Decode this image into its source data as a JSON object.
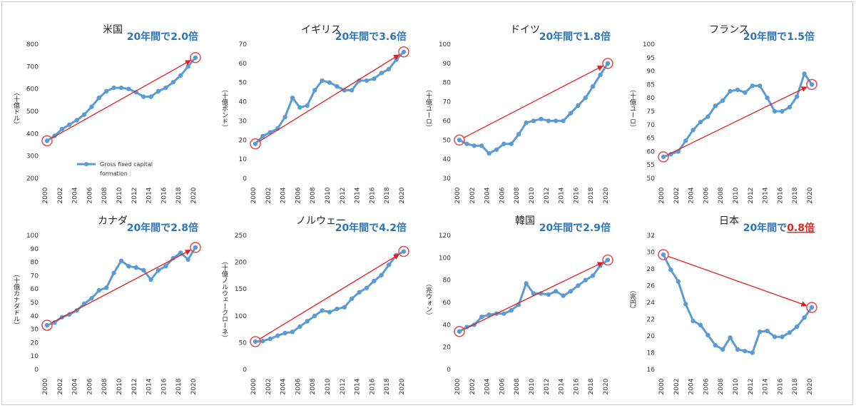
{
  "chart_data": [
    {
      "type": "line",
      "title": "米国",
      "badge_prefix": "20年間で",
      "badge_value": "2.0倍",
      "badge_highlight": false,
      "ylabel": "（十億ドル）",
      "ylim": [
        200,
        800
      ],
      "yticks": [
        200,
        300,
        400,
        500,
        600,
        700,
        800
      ],
      "x": [
        2000,
        2001,
        2002,
        2003,
        2004,
        2005,
        2006,
        2007,
        2008,
        2009,
        2010,
        2011,
        2012,
        2013,
        2014,
        2015,
        2016,
        2017,
        2018,
        2019,
        2020
      ],
      "xtick_labels": [
        "2000",
        "2002",
        "2004",
        "2006",
        "2008",
        "2010",
        "2012",
        "2014",
        "2016",
        "2018",
        "2020"
      ],
      "series": [
        {
          "name": "Gross fixed capital formation",
          "values": [
            368,
            390,
            420,
            440,
            460,
            485,
            520,
            560,
            590,
            605,
            605,
            600,
            585,
            565,
            565,
            590,
            605,
            630,
            660,
            700,
            740
          ]
        }
      ],
      "legend": {
        "line1": "Gross fixed capital",
        "line2": "formation",
        "position": "bottom-left"
      },
      "arrow": {
        "from": [
          2000,
          368
        ],
        "to": [
          2020,
          740
        ]
      }
    },
    {
      "type": "line",
      "title": "イギリス",
      "badge_prefix": "20年間で",
      "badge_value": "3.6倍",
      "badge_highlight": false,
      "ylabel": "（十億ポンド）",
      "ylim": [
        0,
        70
      ],
      "yticks": [
        0,
        10,
        20,
        30,
        40,
        50,
        60,
        70
      ],
      "x": [
        2000,
        2001,
        2002,
        2003,
        2004,
        2005,
        2006,
        2007,
        2008,
        2009,
        2010,
        2011,
        2012,
        2013,
        2014,
        2015,
        2016,
        2017,
        2018,
        2019,
        2020
      ],
      "xtick_labels": [
        "2000",
        "2002",
        "2004",
        "2006",
        "2008",
        "2010",
        "2012",
        "2014",
        "2016",
        "2018",
        "2020"
      ],
      "series": [
        {
          "values": [
            18,
            22,
            24,
            26,
            32,
            42,
            37,
            38,
            46,
            51,
            50,
            48,
            46,
            46,
            51,
            51,
            52,
            55,
            57,
            62,
            66
          ]
        }
      ],
      "arrow": {
        "from": [
          2000,
          18
        ],
        "to": [
          2020,
          66
        ]
      }
    },
    {
      "type": "line",
      "title": "ドイツ",
      "badge_prefix": "20年間で",
      "badge_value": "1.8倍",
      "badge_highlight": false,
      "ylabel": "（十億ユーロ）",
      "ylim": [
        30,
        100
      ],
      "yticks": [
        30,
        40,
        50,
        60,
        70,
        80,
        90,
        100
      ],
      "x": [
        2000,
        2001,
        2002,
        2003,
        2004,
        2005,
        2006,
        2007,
        2008,
        2009,
        2010,
        2011,
        2012,
        2013,
        2014,
        2015,
        2016,
        2017,
        2018,
        2019,
        2020
      ],
      "xtick_labels": [
        "2000",
        "2002",
        "2004",
        "2006",
        "2008",
        "2010",
        "2012",
        "2014",
        "2016",
        "2018",
        "2020"
      ],
      "series": [
        {
          "values": [
            50,
            48,
            47,
            47,
            43,
            45,
            48,
            48,
            53,
            59,
            60,
            61,
            60,
            60,
            60,
            64,
            68,
            72,
            78,
            84,
            90
          ]
        }
      ],
      "arrow": {
        "from": [
          2000,
          50
        ],
        "to": [
          2020,
          90
        ]
      }
    },
    {
      "type": "line",
      "title": "フランス",
      "badge_prefix": "20年間で",
      "badge_value": "1.5倍",
      "badge_highlight": false,
      "ylabel": "（十億ユーロ）",
      "ylim": [
        50,
        100
      ],
      "yticks": [
        50,
        55,
        60,
        65,
        70,
        75,
        80,
        85,
        90,
        95,
        100
      ],
      "x": [
        2000,
        2001,
        2002,
        2003,
        2004,
        2005,
        2006,
        2007,
        2008,
        2009,
        2010,
        2011,
        2012,
        2013,
        2014,
        2015,
        2016,
        2017,
        2018,
        2019,
        2020
      ],
      "xtick_labels": [
        "2000",
        "2002",
        "2004",
        "2006",
        "2008",
        "2010",
        "2012",
        "2014",
        "2016",
        "2018",
        "2020"
      ],
      "series": [
        {
          "values": [
            58,
            59,
            60,
            64,
            68,
            71,
            73,
            77,
            79,
            82.5,
            83,
            82,
            84.5,
            84.5,
            80,
            75,
            75,
            76.5,
            80.5,
            89,
            85
          ]
        }
      ],
      "arrow": {
        "from": [
          2000,
          58
        ],
        "to": [
          2020,
          85
        ]
      }
    },
    {
      "type": "line",
      "title": "カナダ",
      "badge_prefix": "20年間で",
      "badge_value": "2.8倍",
      "badge_highlight": false,
      "ylabel": "（十億カナダドル）",
      "ylim": [
        0,
        100
      ],
      "yticks": [
        0,
        10,
        20,
        30,
        40,
        50,
        60,
        70,
        80,
        90,
        100
      ],
      "x": [
        2000,
        2001,
        2002,
        2003,
        2004,
        2005,
        2006,
        2007,
        2008,
        2009,
        2010,
        2011,
        2012,
        2013,
        2014,
        2015,
        2016,
        2017,
        2018,
        2019,
        2020
      ],
      "xtick_labels": [
        "2000",
        "2002",
        "2004",
        "2006",
        "2008",
        "2010",
        "2012",
        "2014",
        "2016",
        "2018",
        "2020"
      ],
      "series": [
        {
          "values": [
            33,
            35,
            39,
            41,
            44,
            49,
            53,
            59,
            61,
            72,
            81,
            77,
            76,
            74,
            67,
            74,
            77,
            83,
            87,
            82,
            91
          ]
        }
      ],
      "arrow": {
        "from": [
          2000,
          33
        ],
        "to": [
          2020,
          91
        ]
      }
    },
    {
      "type": "line",
      "title": "ノルウェー",
      "badge_prefix": "20年間で",
      "badge_value": "4.2倍",
      "badge_highlight": false,
      "ylabel": "（十億ノルウェークローネ）",
      "ylim": [
        0,
        250
      ],
      "yticks": [
        0,
        50,
        100,
        150,
        200,
        250
      ],
      "x": [
        2000,
        2001,
        2002,
        2003,
        2004,
        2005,
        2006,
        2007,
        2008,
        2009,
        2010,
        2011,
        2012,
        2013,
        2014,
        2015,
        2016,
        2017,
        2018,
        2019,
        2020
      ],
      "xtick_labels": [
        "2000",
        "2002",
        "2004",
        "2006",
        "2008",
        "2010",
        "2012",
        "2014",
        "2016",
        "2018",
        "2020"
      ],
      "series": [
        {
          "values": [
            52,
            53,
            57,
            63,
            68,
            70,
            80,
            90,
            100,
            110,
            107,
            113,
            116,
            132,
            144,
            152,
            165,
            176,
            195,
            213,
            220
          ]
        }
      ],
      "arrow": {
        "from": [
          2000,
          52
        ],
        "to": [
          2020,
          220
        ]
      }
    },
    {
      "type": "line",
      "title": "韓国",
      "badge_prefix": "20年間で",
      "badge_value": "2.9倍",
      "badge_highlight": false,
      "ylabel": "（兆ウォン）",
      "ylim": [
        0,
        120
      ],
      "yticks": [
        0,
        20,
        40,
        60,
        80,
        100,
        120
      ],
      "x": [
        2000,
        2001,
        2002,
        2003,
        2004,
        2005,
        2006,
        2007,
        2008,
        2009,
        2010,
        2011,
        2012,
        2013,
        2014,
        2015,
        2016,
        2017,
        2018,
        2019,
        2020
      ],
      "xtick_labels": [
        "2000",
        "2002",
        "2004",
        "2006",
        "2008",
        "2010",
        "2012",
        "2014",
        "2016",
        "2018",
        "2020"
      ],
      "series": [
        {
          "values": [
            34,
            38,
            40,
            47,
            49,
            50,
            50,
            53,
            58,
            77,
            68,
            68,
            67,
            70,
            66,
            70,
            75,
            80,
            84,
            93,
            98
          ]
        }
      ],
      "arrow": {
        "from": [
          2000,
          34
        ],
        "to": [
          2020,
          98
        ]
      }
    },
    {
      "type": "line",
      "title": "日本",
      "badge_prefix": "20年間で",
      "badge_value": "0.8倍",
      "badge_highlight": true,
      "ylabel": "（兆円）",
      "ylim": [
        16,
        32
      ],
      "yticks": [
        16,
        18,
        20,
        22,
        24,
        26,
        28,
        30,
        32
      ],
      "x": [
        2000,
        2001,
        2002,
        2003,
        2004,
        2005,
        2006,
        2007,
        2008,
        2009,
        2010,
        2011,
        2012,
        2013,
        2014,
        2015,
        2016,
        2017,
        2018,
        2019,
        2020
      ],
      "xtick_labels": [
        "2000",
        "2002",
        "2004",
        "2006",
        "2008",
        "2010",
        "2012",
        "2014",
        "2016",
        "2018",
        "2020"
      ],
      "series": [
        {
          "values": [
            29.7,
            27.9,
            26.5,
            23.8,
            21.8,
            21.3,
            20.1,
            18.9,
            18.4,
            19.8,
            18.4,
            18.2,
            18.0,
            20.5,
            20.6,
            19.9,
            19.9,
            20.4,
            21.1,
            22.2,
            23.4
          ]
        }
      ],
      "arrow": {
        "from": [
          2000,
          29.7
        ],
        "to": [
          2020,
          23.4
        ]
      }
    }
  ],
  "colors": {
    "line": "#5b9bd5",
    "arrow": "#e02020",
    "circle": "#e34a4a",
    "badge": "#2e75b6",
    "badge_highlight": "#e3221b"
  }
}
